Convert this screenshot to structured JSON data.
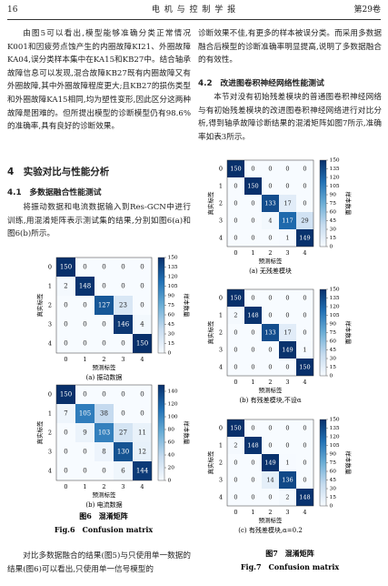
{
  "header": {
    "page": "16",
    "journal": "电 机 与 控 制 学 报",
    "volume": "第29卷"
  },
  "left": {
    "para1": "由图5可以看出,模型能够准确分类正常情况K001和因疲劳点蚀产生的内圈故障KI21、外圈故障KA04,误分类样本集中在KA15和KB27中。结合轴承故障信息可以发现,混合故障KB27既有内圈故障又有外圈故障,其中外圈故障程度更大;且KB27的损伤类型和外圈故障KA15相同,均为塑性变形,因此区分这两种故障是困难的。但所提出模型的诊断模型仍有98.6%的准确率,具有良好的诊断效果。",
    "section": "4　实验对比与性能分析",
    "subsection": "4.1　多数据融合性能测试",
    "para2": "将振动数据和电流数据输入到Res-GCN中进行训练,用混淆矩阵表示测试集的结果,分别如图6(a)和图6(b)所示。",
    "para3": "对比多数据融合的结果(图5)与只使用单一数据的结果(图6)可以看出,只使用单一信号模型的"
  },
  "right": {
    "para1": "诊断效果不佳,有更多的样本被误分类。而采用多数据融合后模型的诊断准确率明显提高,说明了多数据融合的有效性。",
    "subsection": "4.2　改进图卷积神经网络性能测试",
    "para2": "本节对没有初始残差模块的普通图卷积神经网络与有初始残差模块的改进图卷积神经网络进行对比分析,得到轴承故障诊断结果的混淆矩阵如图7所示,准确率如表3所示。"
  },
  "figures": [
    {
      "caption_cn": "图6　混淆矩阵",
      "caption_en": "Fig.6　Confusion matrix",
      "panels": [
        {
          "label": "(a) 振动数据",
          "x_label": "预测标签",
          "y_label": "真实标签",
          "colorbar_label": "样本数量",
          "classes": [
            0,
            1,
            2,
            3,
            4
          ],
          "matrix": [
            [
              150,
              0,
              0,
              0,
              0
            ],
            [
              2,
              148,
              0,
              0,
              0
            ],
            [
              0,
              0,
              127,
              23,
              0
            ],
            [
              0,
              0,
              0,
              146,
              4
            ],
            [
              0,
              0,
              0,
              0,
              150
            ]
          ],
          "colorbar_ticks": [
            0,
            15,
            30,
            45,
            60,
            75,
            90,
            105,
            120,
            135,
            150
          ]
        },
        {
          "label": "(b) 电流数据",
          "x_label": "预测标签",
          "y_label": "真实标签",
          "colorbar_label": "样本数量",
          "classes": [
            0,
            1,
            2,
            3,
            4
          ],
          "matrix": [
            [
              150,
              0,
              0,
              0,
              0
            ],
            [
              7,
              105,
              38,
              0,
              0
            ],
            [
              0,
              9,
              103,
              27,
              11
            ],
            [
              0,
              0,
              8,
              130,
              12
            ],
            [
              0,
              0,
              0,
              6,
              144
            ]
          ],
          "colorbar_ticks": [
            0,
            20,
            40,
            60,
            80,
            100,
            120,
            140
          ]
        }
      ]
    },
    {
      "caption_cn": "图7　混淆矩阵",
      "caption_en": "Fig.7　Confusion matrix",
      "panels": [
        {
          "label": "(a) 无残差模块",
          "x_label": "预测标签",
          "y_label": "真实标签",
          "colorbar_label": "样本数量",
          "classes": [
            0,
            1,
            2,
            3,
            4
          ],
          "matrix": [
            [
              150,
              0,
              0,
              0,
              0
            ],
            [
              0,
              150,
              0,
              0,
              0
            ],
            [
              0,
              0,
              133,
              17,
              0
            ],
            [
              0,
              0,
              4,
              117,
              29
            ],
            [
              0,
              0,
              0,
              1,
              149
            ]
          ],
          "colorbar_ticks": [
            0,
            15,
            30,
            45,
            60,
            75,
            90,
            105,
            120,
            135,
            150
          ]
        },
        {
          "label": "(b) 有残差模块,不设α",
          "x_label": "预测标签",
          "y_label": "真实标签",
          "colorbar_label": "样本数量",
          "classes": [
            0,
            1,
            2,
            3,
            4
          ],
          "matrix": [
            [
              150,
              0,
              0,
              0,
              0
            ],
            [
              2,
              148,
              0,
              0,
              0
            ],
            [
              0,
              0,
              133,
              17,
              0
            ],
            [
              0,
              0,
              0,
              149,
              1
            ],
            [
              0,
              0,
              0,
              0,
              150
            ]
          ],
          "colorbar_ticks": [
            0,
            15,
            30,
            45,
            60,
            75,
            90,
            105,
            120,
            135,
            150
          ]
        },
        {
          "label": "(c) 有残差模块,α=0.2",
          "x_label": "预测标签",
          "y_label": "真实标签",
          "colorbar_label": "样本数量",
          "classes": [
            0,
            1,
            2,
            3,
            4
          ],
          "matrix": [
            [
              150,
              0,
              0,
              0,
              0
            ],
            [
              2,
              148,
              0,
              0,
              0
            ],
            [
              0,
              0,
              149,
              1,
              0
            ],
            [
              0,
              0,
              14,
              136,
              0
            ],
            [
              0,
              0,
              0,
              2,
              148
            ]
          ],
          "colorbar_ticks": [
            0,
            15,
            30,
            45,
            60,
            75,
            90,
            105,
            120,
            135,
            150
          ]
        }
      ]
    }
  ]
}
